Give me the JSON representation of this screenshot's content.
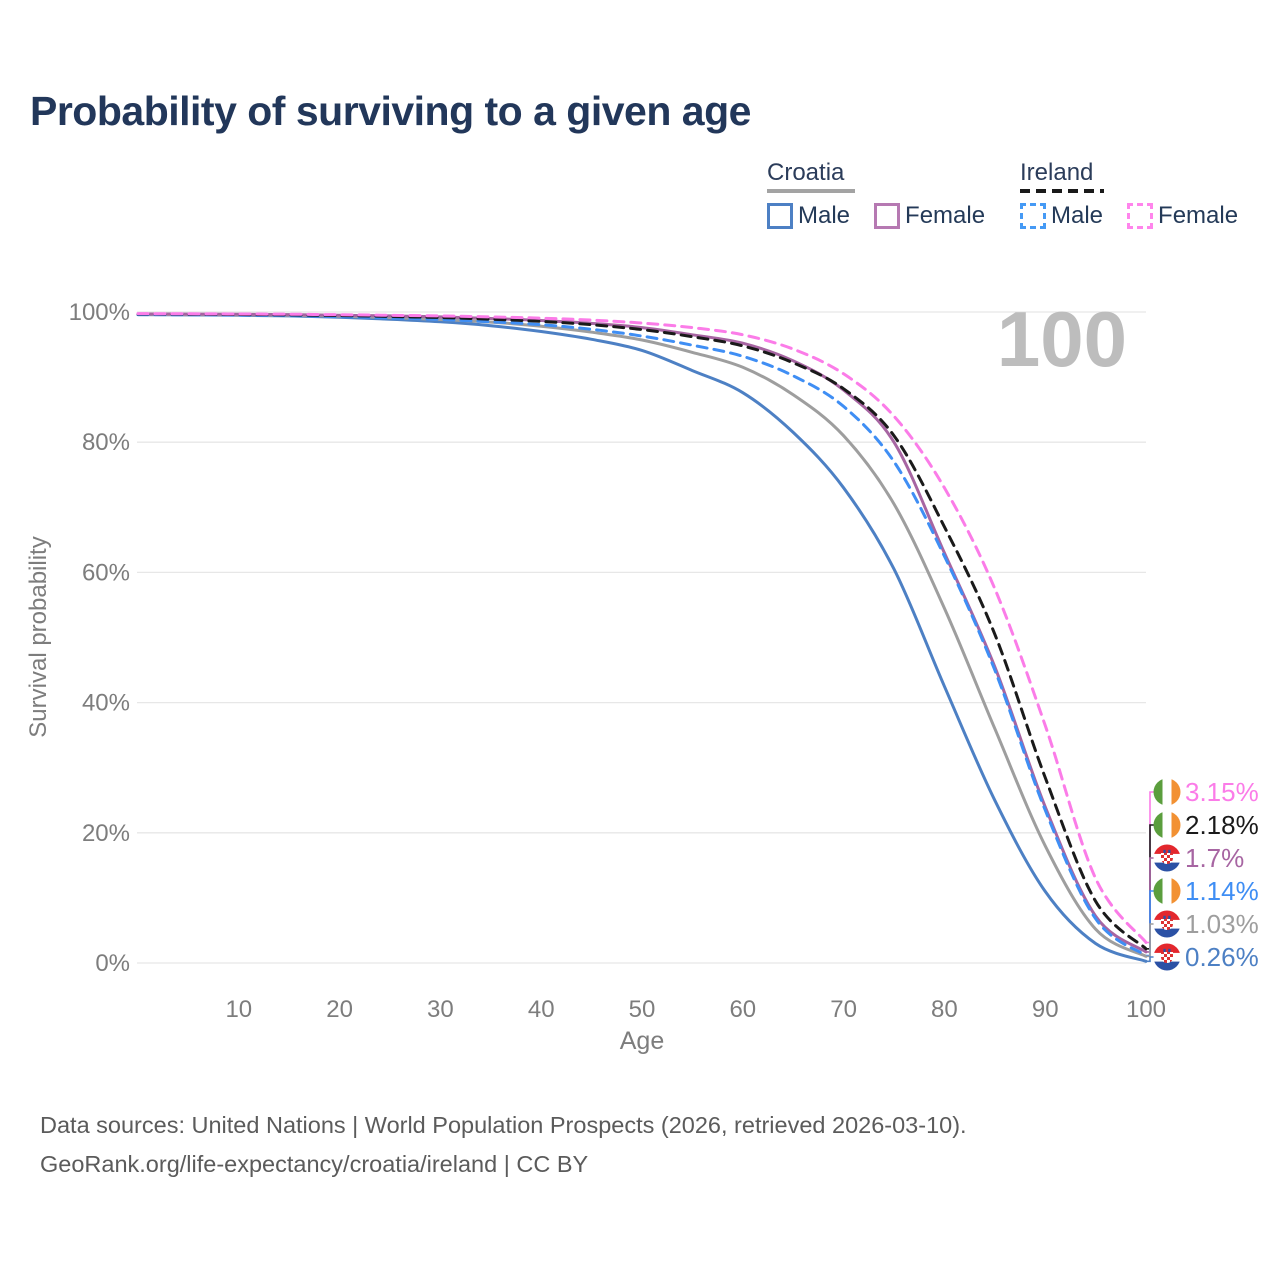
{
  "title": "Probability of surviving to a given age",
  "legend": {
    "groups": [
      {
        "country": "Croatia",
        "line_style": "solid",
        "underline_color": "#a3a3a3",
        "items": [
          {
            "label": "Male",
            "color": "#4d80c4"
          },
          {
            "label": "Female",
            "color": "#b679b2"
          }
        ]
      },
      {
        "country": "Ireland",
        "line_style": "dashed",
        "underline_color": "#1a1a1a",
        "items": [
          {
            "label": "Male",
            "color": "#459af5"
          },
          {
            "label": "Female",
            "color": "#ff85ec"
          }
        ]
      }
    ]
  },
  "chart_data": {
    "type": "line",
    "title": "Probability of surviving to a given age",
    "xlabel": "Age",
    "ylabel": "Survival probability",
    "xlim": [
      0,
      100
    ],
    "ylim": [
      0,
      100
    ],
    "grid": "horizontal",
    "gridline_color": "#e7e7e7",
    "watermark": "100",
    "xticks": [
      10,
      20,
      30,
      40,
      50,
      60,
      70,
      80,
      90,
      100
    ],
    "ytick_labels": [
      "0%",
      "20%",
      "40%",
      "60%",
      "80%",
      "100%"
    ],
    "yticks_percent": [
      0,
      20,
      40,
      60,
      80,
      100
    ],
    "x_ages": [
      0,
      5,
      10,
      15,
      20,
      25,
      30,
      35,
      40,
      45,
      50,
      55,
      60,
      65,
      70,
      75,
      80,
      85,
      90,
      95,
      100
    ],
    "series": [
      {
        "name": "Croatia Male",
        "country": "Croatia",
        "sex": "Male",
        "line": "solid",
        "color": "#4d80c4",
        "flag": "croatia",
        "end_label": "0.26%",
        "end_value": 0.26,
        "values": [
          99.6,
          99.55,
          99.5,
          99.4,
          99.2,
          98.9,
          98.5,
          97.9,
          97.0,
          95.8,
          94.1,
          91.0,
          87.6,
          81.5,
          73.0,
          60.5,
          42.5,
          25.0,
          11.0,
          3.0,
          0.26
        ]
      },
      {
        "name": "Croatia Total",
        "country": "Croatia",
        "sex": "Both",
        "line": "solid",
        "color": "#9e9e9e",
        "flag": "croatia",
        "end_label": "1.03%",
        "end_value": 1.03,
        "values": [
          99.65,
          99.6,
          99.55,
          99.5,
          99.35,
          99.15,
          98.85,
          98.45,
          97.8,
          96.9,
          95.7,
          93.8,
          91.5,
          87.3,
          81.0,
          70.5,
          54.5,
          36.0,
          18.0,
          5.2,
          1.03
        ]
      },
      {
        "name": "Croatia Female",
        "country": "Croatia",
        "sex": "Female",
        "line": "solid",
        "color": "#a765a2",
        "flag": "croatia",
        "end_label": "1.7%",
        "end_value": 1.7,
        "values": [
          99.7,
          99.68,
          99.65,
          99.6,
          99.5,
          99.4,
          99.25,
          99.0,
          98.7,
          98.25,
          97.6,
          96.5,
          95.2,
          92.5,
          88.0,
          80.0,
          63.0,
          45.5,
          24.0,
          7.2,
          1.7
        ]
      },
      {
        "name": "Ireland Male",
        "country": "Ireland",
        "sex": "Male",
        "line": "dashed",
        "color": "#3f8ef4",
        "flag": "ireland",
        "end_label": "1.14%",
        "end_value": 1.14,
        "values": [
          99.6,
          99.57,
          99.53,
          99.45,
          99.3,
          99.1,
          98.85,
          98.5,
          98.05,
          97.35,
          96.3,
          94.9,
          93.2,
          90.2,
          85.5,
          77.0,
          62.5,
          45.0,
          23.5,
          6.8,
          1.14
        ]
      },
      {
        "name": "Ireland Total",
        "country": "Ireland",
        "sex": "Both",
        "line": "dashed",
        "color": "#1a1a1a",
        "flag": "ireland",
        "end_label": "2.18%",
        "end_value": 2.18,
        "values": [
          99.7,
          99.66,
          99.62,
          99.56,
          99.45,
          99.32,
          99.15,
          98.9,
          98.55,
          98.05,
          97.3,
          96.2,
          94.8,
          92.2,
          88.2,
          81.0,
          67.0,
          50.5,
          28.5,
          9.5,
          2.18
        ]
      },
      {
        "name": "Ireland Female",
        "country": "Ireland",
        "sex": "Female",
        "line": "dashed",
        "color": "#fb7ce8",
        "flag": "ireland",
        "end_label": "3.15%",
        "end_value": 3.15,
        "values": [
          99.75,
          99.72,
          99.7,
          99.66,
          99.58,
          99.5,
          99.4,
          99.25,
          99.05,
          98.75,
          98.3,
          97.6,
          96.5,
          94.3,
          90.5,
          84.0,
          73.0,
          57.5,
          36.5,
          13.0,
          3.15
        ]
      }
    ]
  },
  "footer": {
    "line1": "Data sources: United Nations | World Population Prospects (2026, retrieved 2026-03-10).",
    "line2": "GeoRank.org/life-expectancy/croatia/ireland | CC BY"
  },
  "colors": {
    "title": "#22375a",
    "axis_text": "#7d7d7d",
    "watermark": "#bdbdbd",
    "footer_text": "#5b5b5b"
  }
}
